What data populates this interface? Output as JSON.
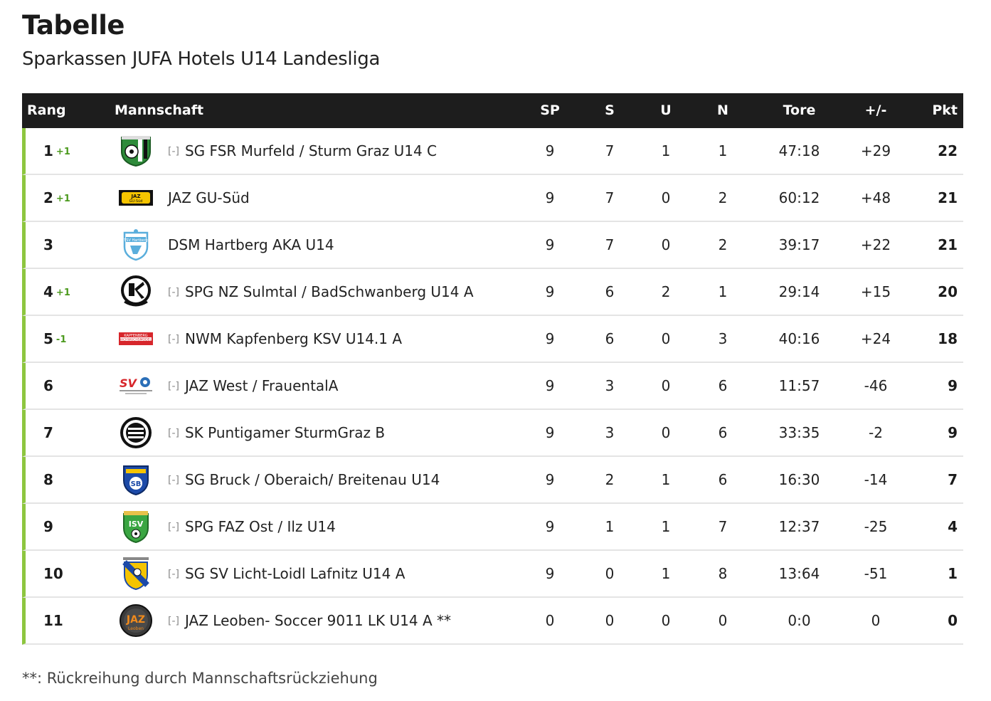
{
  "title": "Tabelle",
  "subtitle": "Sparkassen JUFA Hotels U14 Landesliga",
  "columns": {
    "rang": "Rang",
    "team": "Mannschaft",
    "sp": "SP",
    "s": "S",
    "u": "U",
    "n": "N",
    "tore": "Tore",
    "diff": "+/-",
    "pkt": "Pkt"
  },
  "colors": {
    "header_bg": "#1d1d1d",
    "row_accent": "#8dc63f",
    "rank_up": "#4c9a1e"
  },
  "rows": [
    {
      "rank": "1",
      "change": "+1",
      "expander": "[-]",
      "team": "SG FSR Murfeld / Sturm Graz U14 C",
      "logo": "murfeld-crest-icon",
      "sp": "9",
      "s": "7",
      "u": "1",
      "n": "1",
      "tore": "47:18",
      "diff": "+29",
      "pkt": "22"
    },
    {
      "rank": "2",
      "change": "+1",
      "expander": "",
      "team": "JAZ GU-Süd",
      "logo": "jaz-gu-sued-logo-icon",
      "sp": "9",
      "s": "7",
      "u": "0",
      "n": "2",
      "tore": "60:12",
      "diff": "+48",
      "pkt": "21"
    },
    {
      "rank": "3",
      "change": "",
      "expander": "",
      "team": "DSM Hartberg AKA U14",
      "logo": "tsv-hartberg-crest-icon",
      "sp": "9",
      "s": "7",
      "u": "0",
      "n": "2",
      "tore": "39:17",
      "diff": "+22",
      "pkt": "21"
    },
    {
      "rank": "4",
      "change": "+1",
      "expander": "[-]",
      "team": "SPG NZ Sulmtal / BadSchwanberg U14 A",
      "logo": "sv-bad-schwanberg-crest-icon",
      "sp": "9",
      "s": "6",
      "u": "2",
      "n": "1",
      "tore": "29:14",
      "diff": "+15",
      "pkt": "20"
    },
    {
      "rank": "5",
      "change": "-1",
      "expander": "[-]",
      "team": "NWM Kapfenberg KSV U14.1 A",
      "logo": "kapfenberg-nachwuchsmodell-logo-icon",
      "sp": "9",
      "s": "6",
      "u": "0",
      "n": "3",
      "tore": "40:16",
      "diff": "+24",
      "pkt": "18"
    },
    {
      "rank": "6",
      "change": "",
      "expander": "[-]",
      "team": "JAZ West / FrauentalA",
      "logo": "sv-frauental-logo-icon",
      "sp": "9",
      "s": "3",
      "u": "0",
      "n": "6",
      "tore": "11:57",
      "diff": "-46",
      "pkt": "9"
    },
    {
      "rank": "7",
      "change": "",
      "expander": "[-]",
      "team": "SK Puntigamer SturmGraz B",
      "logo": "sk-sturm-graz-crest-icon",
      "sp": "9",
      "s": "3",
      "u": "0",
      "n": "6",
      "tore": "33:35",
      "diff": "-2",
      "pkt": "9"
    },
    {
      "rank": "8",
      "change": "",
      "expander": "[-]",
      "team": "SG Bruck / Oberaich/ Breitenau U14",
      "logo": "bruck-crest-icon",
      "sp": "9",
      "s": "2",
      "u": "1",
      "n": "6",
      "tore": "16:30",
      "diff": "-14",
      "pkt": "7"
    },
    {
      "rank": "9",
      "change": "",
      "expander": "[-]",
      "team": "SPG FAZ Ost / Ilz U14",
      "logo": "isv-ilz-crest-icon",
      "sp": "9",
      "s": "1",
      "u": "1",
      "n": "7",
      "tore": "12:37",
      "diff": "-25",
      "pkt": "4"
    },
    {
      "rank": "10",
      "change": "",
      "expander": "[-]",
      "team": "SG SV Licht-Loidl Lafnitz U14 A",
      "logo": "sv-lafnitz-crest-icon",
      "sp": "9",
      "s": "0",
      "u": "1",
      "n": "8",
      "tore": "13:64",
      "diff": "-51",
      "pkt": "1"
    },
    {
      "rank": "11",
      "change": "",
      "expander": "[-]",
      "team": "JAZ Leoben- Soccer 9011 LK U14 A **",
      "logo": "jaz-leoben-logo-icon",
      "sp": "0",
      "s": "0",
      "u": "0",
      "n": "0",
      "tore": "0:0",
      "diff": "0",
      "pkt": "0"
    }
  ],
  "footnote": "**: Rückreihung durch Mannschaftsrückziehung"
}
